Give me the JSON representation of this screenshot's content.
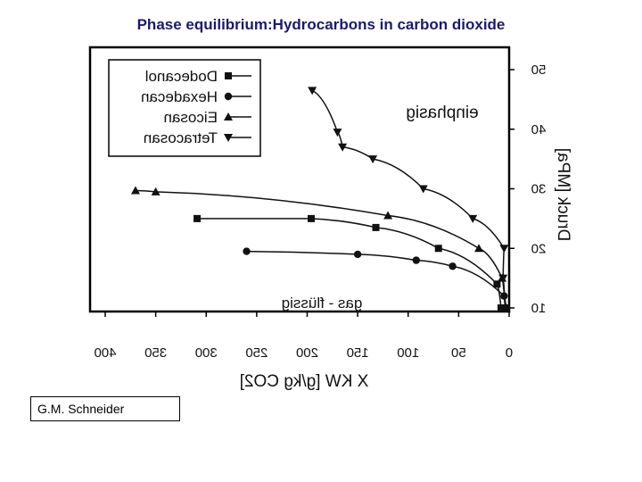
{
  "title": "Phase equilibrium:Hydrocarbons in carbon dioxide",
  "credit": "G.M. Schneider",
  "chart_data": {
    "type": "line",
    "mirrored_horizontally": true,
    "xlabel": "X KW [g/kg CO2]",
    "ylabel": "Druck [MPa]",
    "xlim": [
      0,
      400
    ],
    "ylim": [
      10,
      50
    ],
    "xticks": [
      0,
      50,
      100,
      150,
      200,
      250,
      300,
      350,
      400
    ],
    "yticks": [
      10,
      20,
      30,
      40,
      50
    ],
    "annotations": [
      "einphasig",
      "gas - flüssig"
    ],
    "legend_position": "top-left",
    "grid": false,
    "series": [
      {
        "name": "Dodecanol",
        "marker": "square",
        "points": [
          [
            309,
            25
          ],
          [
            196,
            25
          ],
          [
            132,
            23.5
          ],
          [
            70,
            20
          ],
          [
            12,
            14
          ],
          [
            8,
            10
          ]
        ]
      },
      {
        "name": "Hexadecan",
        "marker": "circle",
        "points": [
          [
            260,
            19.5
          ],
          [
            150,
            19
          ],
          [
            92,
            18
          ],
          [
            56,
            17
          ],
          [
            5,
            12
          ],
          [
            3,
            10
          ]
        ]
      },
      {
        "name": "Eicosan",
        "marker": "triangle-up",
        "points": [
          [
            370,
            29.7
          ],
          [
            350,
            29.5
          ],
          [
            120,
            25.5
          ],
          [
            30,
            20
          ],
          [
            7,
            15
          ],
          [
            4,
            10
          ]
        ]
      },
      {
        "name": "Tetracosan",
        "marker": "triangle-down",
        "points": [
          [
            195,
            46.5
          ],
          [
            170,
            39.5
          ],
          [
            165,
            37
          ],
          [
            135,
            35
          ],
          [
            85,
            30
          ],
          [
            36,
            25
          ],
          [
            5,
            20
          ],
          [
            6,
            15
          ],
          [
            4,
            10
          ]
        ]
      }
    ]
  }
}
